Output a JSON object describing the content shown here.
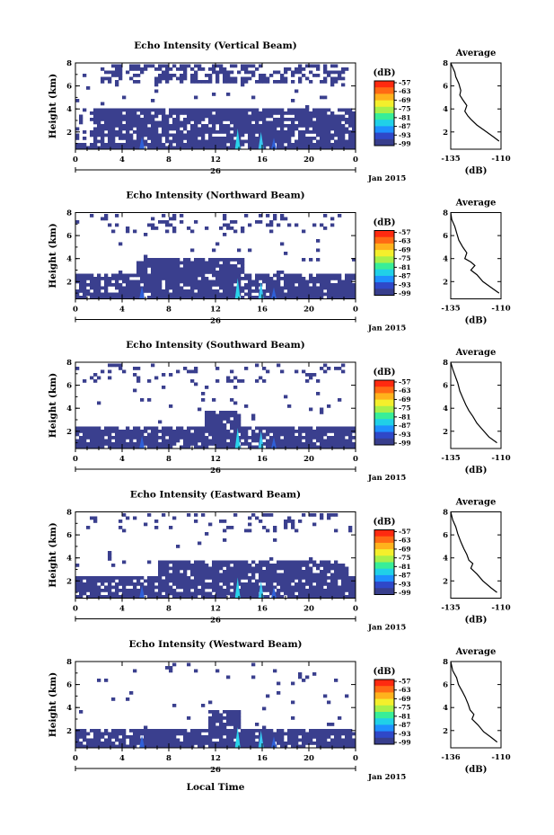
{
  "figure": {
    "xlabel": "Local Time"
  },
  "chart_data": [
    {
      "type": "heatmap",
      "title": "Echo Intensity (Vertical Beam)",
      "beam": "vertical",
      "ylabel": "Height (km)",
      "yticks": [
        "2",
        "4",
        "6",
        "8"
      ],
      "ylim": [
        0.5,
        8
      ],
      "xticks": [
        "0",
        "4",
        "8",
        "12",
        "16",
        "20",
        "0"
      ],
      "xlim": [
        0,
        24
      ],
      "date_day": "26",
      "date_month": "Jan 2015",
      "colorbar": {
        "unit": "(dB)",
        "ticks": [
          "-57",
          "-63",
          "-69",
          "-75",
          "-81",
          "-87",
          "-93",
          "-99"
        ],
        "colors": [
          "#ff2a10",
          "#ff6a14",
          "#ffb21c",
          "#f4ef2c",
          "#a8f04a",
          "#38ee98",
          "#20d0e8",
          "#1e90ff",
          "#2f48c8",
          "#383e8c"
        ]
      },
      "profile": {
        "title": "Average",
        "unit": "(dB)",
        "xticks": [
          "-135",
          "-110"
        ],
        "xlim": [
          -135,
          -110
        ],
        "yticks": [
          "2",
          "4",
          "6",
          "8"
        ],
        "ylim": [
          0.5,
          8
        ],
        "x": [
          -135,
          -134,
          -133,
          -132.5,
          -131,
          -130,
          -130.5,
          -129,
          -127,
          -128,
          -126.5,
          -125,
          -122,
          -118,
          -114,
          -111
        ],
        "y": [
          8,
          7.6,
          7.2,
          6.8,
          6.2,
          5.6,
          5.2,
          4.8,
          4.3,
          3.8,
          3.4,
          3.1,
          2.6,
          2.1,
          1.6,
          1.2
        ]
      }
    },
    {
      "type": "heatmap",
      "title": "Echo Intensity (Northward Beam)",
      "beam": "northward",
      "ylabel": "Height (km)",
      "yticks": [
        "2",
        "4",
        "6",
        "8"
      ],
      "ylim": [
        0.5,
        8
      ],
      "xticks": [
        "0",
        "4",
        "8",
        "12",
        "16",
        "20",
        "0"
      ],
      "xlim": [
        0,
        24
      ],
      "date_day": "26",
      "date_month": "Jan 2015",
      "colorbar": {
        "unit": "(dB)",
        "ticks": [
          "-57",
          "-63",
          "-69",
          "-75",
          "-81",
          "-87",
          "-93",
          "-99"
        ],
        "colors": [
          "#ff2a10",
          "#ff6a14",
          "#ffb21c",
          "#f4ef2c",
          "#a8f04a",
          "#38ee98",
          "#20d0e8",
          "#1e90ff",
          "#2f48c8",
          "#383e8c"
        ]
      },
      "profile": {
        "title": "Average",
        "unit": "(dB)",
        "xticks": [
          "-135",
          "-110"
        ],
        "xlim": [
          -135,
          -110
        ],
        "yticks": [
          "2",
          "4",
          "6",
          "8"
        ],
        "ylim": [
          0.5,
          8
        ],
        "x": [
          -135,
          -134.5,
          -133,
          -132,
          -131,
          -129,
          -127,
          -128,
          -125,
          -123,
          -125,
          -122,
          -119,
          -115,
          -111
        ],
        "y": [
          8,
          7.4,
          6.8,
          6.2,
          5.6,
          5.0,
          4.5,
          4.0,
          3.7,
          3.4,
          3.0,
          2.6,
          2.0,
          1.5,
          1.0
        ]
      }
    },
    {
      "type": "heatmap",
      "title": "Echo Intensity (Southward Beam)",
      "beam": "southward",
      "ylabel": "Height (km)",
      "yticks": [
        "2",
        "4",
        "6",
        "8"
      ],
      "ylim": [
        0.5,
        8
      ],
      "xticks": [
        "0",
        "4",
        "8",
        "12",
        "16",
        "20",
        "0"
      ],
      "xlim": [
        0,
        24
      ],
      "date_day": "26",
      "date_month": "Jan 2015",
      "colorbar": {
        "unit": "(dB)",
        "ticks": [
          "-57",
          "-63",
          "-69",
          "-75",
          "-81",
          "-87",
          "-93",
          "-99"
        ],
        "colors": [
          "#ff2a10",
          "#ff6a14",
          "#ffb21c",
          "#f4ef2c",
          "#a8f04a",
          "#38ee98",
          "#20d0e8",
          "#1e90ff",
          "#2f48c8",
          "#383e8c"
        ]
      },
      "profile": {
        "title": "Average",
        "unit": "(dB)",
        "xticks": [
          "-135",
          "-110"
        ],
        "xlim": [
          -135,
          -110
        ],
        "yticks": [
          "2",
          "4",
          "6",
          "8"
        ],
        "ylim": [
          0.5,
          8
        ],
        "x": [
          -135,
          -134,
          -133,
          -131.5,
          -130.5,
          -129,
          -127.5,
          -126,
          -124,
          -122,
          -119,
          -116,
          -112
        ],
        "y": [
          8,
          7.4,
          6.9,
          6.2,
          5.5,
          4.9,
          4.3,
          3.8,
          3.3,
          2.7,
          2.1,
          1.5,
          1.0
        ]
      }
    },
    {
      "type": "heatmap",
      "title": "Echo Intensity (Eastward Beam)",
      "beam": "eastward",
      "ylabel": "Height (km)",
      "yticks": [
        "2",
        "4",
        "6",
        "8"
      ],
      "ylim": [
        0.5,
        8
      ],
      "xticks": [
        "0",
        "4",
        "8",
        "12",
        "16",
        "20",
        "0"
      ],
      "xlim": [
        0,
        24
      ],
      "date_day": "26",
      "date_month": "Jan 2015",
      "colorbar": {
        "unit": "(dB)",
        "ticks": [
          "-57",
          "-63",
          "-69",
          "-75",
          "-81",
          "-87",
          "-93",
          "-99"
        ],
        "colors": [
          "#ff2a10",
          "#ff6a14",
          "#ffb21c",
          "#f4ef2c",
          "#a8f04a",
          "#38ee98",
          "#20d0e8",
          "#1e90ff",
          "#2f48c8",
          "#383e8c"
        ]
      },
      "profile": {
        "title": "Average",
        "unit": "(dB)",
        "xticks": [
          "-135",
          "-110"
        ],
        "xlim": [
          -135,
          -110
        ],
        "yticks": [
          "2",
          "4",
          "6",
          "8"
        ],
        "ylim": [
          0.5,
          8
        ],
        "x": [
          -135,
          -134,
          -132.5,
          -131.5,
          -130,
          -128.5,
          -127,
          -126,
          -124,
          -125,
          -122,
          -119,
          -115,
          -112
        ],
        "y": [
          8,
          7.3,
          6.7,
          6.1,
          5.4,
          4.8,
          4.3,
          3.8,
          3.5,
          3.1,
          2.6,
          2.0,
          1.4,
          1.0
        ]
      }
    },
    {
      "type": "heatmap",
      "title": "Echo Intensity (Westward Beam)",
      "beam": "westward",
      "ylabel": "Height (km)",
      "yticks": [
        "2",
        "4",
        "6",
        "8"
      ],
      "ylim": [
        0.5,
        8
      ],
      "xticks": [
        "0",
        "4",
        "8",
        "12",
        "16",
        "20",
        "0"
      ],
      "xlim": [
        0,
        24
      ],
      "date_day": "26",
      "date_month": "Jan 2015",
      "colorbar": {
        "unit": "(dB)",
        "ticks": [
          "-57",
          "-63",
          "-69",
          "-75",
          "-81",
          "-87",
          "-93",
          "-99"
        ],
        "colors": [
          "#ff2a10",
          "#ff6a14",
          "#ffb21c",
          "#f4ef2c",
          "#a8f04a",
          "#38ee98",
          "#20d0e8",
          "#1e90ff",
          "#2f48c8",
          "#383e8c"
        ]
      },
      "profile": {
        "title": "Average",
        "unit": "(dB)",
        "xticks": [
          "-136",
          "-110"
        ],
        "xlim": [
          -136,
          -110
        ],
        "yticks": [
          "2",
          "4",
          "6",
          "8"
        ],
        "ylim": [
          0.5,
          8
        ],
        "x": [
          -136,
          -135,
          -133,
          -132,
          -130,
          -128.5,
          -127,
          -126,
          -124,
          -125,
          -122,
          -119,
          -115,
          -112
        ],
        "y": [
          8,
          7.2,
          6.6,
          6.0,
          5.4,
          4.9,
          4.3,
          3.8,
          3.4,
          3.0,
          2.5,
          1.9,
          1.4,
          1.0
        ]
      }
    }
  ]
}
